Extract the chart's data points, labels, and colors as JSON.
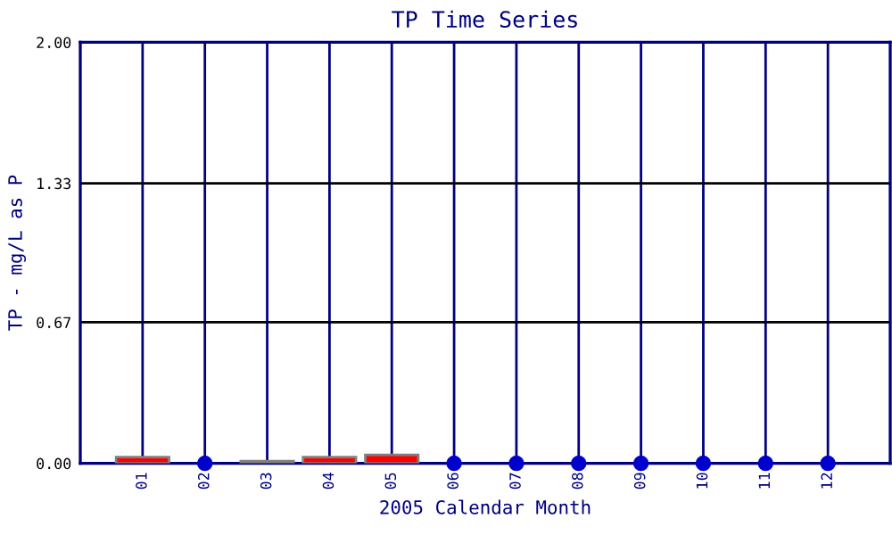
{
  "chart_data": {
    "type": "bar",
    "title": "TP Time Series",
    "xlabel": "2005 Calendar Month",
    "ylabel": "TP - mg/L as P",
    "categories": [
      "01",
      "02",
      "03",
      "04",
      "05",
      "06",
      "07",
      "08",
      "09",
      "10",
      "11",
      "12"
    ],
    "series": [
      {
        "color": "#ff0000",
        "values": [
          0.03,
          null,
          0.01,
          0.03,
          0.04,
          null,
          null,
          null,
          null,
          null,
          null,
          null
        ]
      },
      {
        "type": "scatter",
        "color": "#0000cc",
        "values": [
          null,
          0,
          null,
          null,
          null,
          0,
          0,
          0,
          0,
          0,
          0,
          0
        ]
      }
    ],
    "ylim": [
      0,
      2
    ],
    "yticks": [
      {
        "value": 0,
        "label": "0.00"
      },
      {
        "value": 0.67,
        "label": "0.67"
      },
      {
        "value": 1.33,
        "label": "1.33"
      },
      {
        "value": 2,
        "label": "2.00"
      }
    ],
    "grid": true,
    "marker": "circle",
    "legend": false
  }
}
